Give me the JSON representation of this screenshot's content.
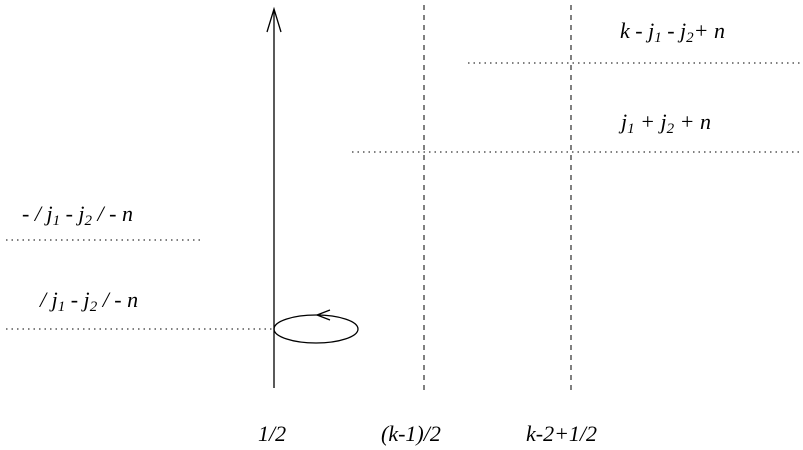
{
  "figure": {
    "colors": {
      "stroke": "#000000",
      "background": "#ffffff"
    },
    "labels": {
      "top_right": {
        "pre": "k - j",
        "sub1": "1",
        "mid": " - j",
        "sub2": "2",
        "post": "+ n"
      },
      "upper_right": {
        "pre": "j",
        "sub1": "1",
        "mid": " + j",
        "sub2": "2",
        "post": " + n"
      },
      "left_upper": {
        "pre": "- / j",
        "sub1": "1",
        "mid": " - j",
        "sub2": "2",
        "post": " / - n"
      },
      "left_lower": {
        "pre": "/ j",
        "sub1": "1",
        "mid": " - j",
        "sub2": "2",
        "post": " / - n"
      },
      "bottom_half": "1/2",
      "bottom_k_minus_1": "(k-1)/2",
      "bottom_k_minus_2": "k-2+1/2"
    }
  }
}
